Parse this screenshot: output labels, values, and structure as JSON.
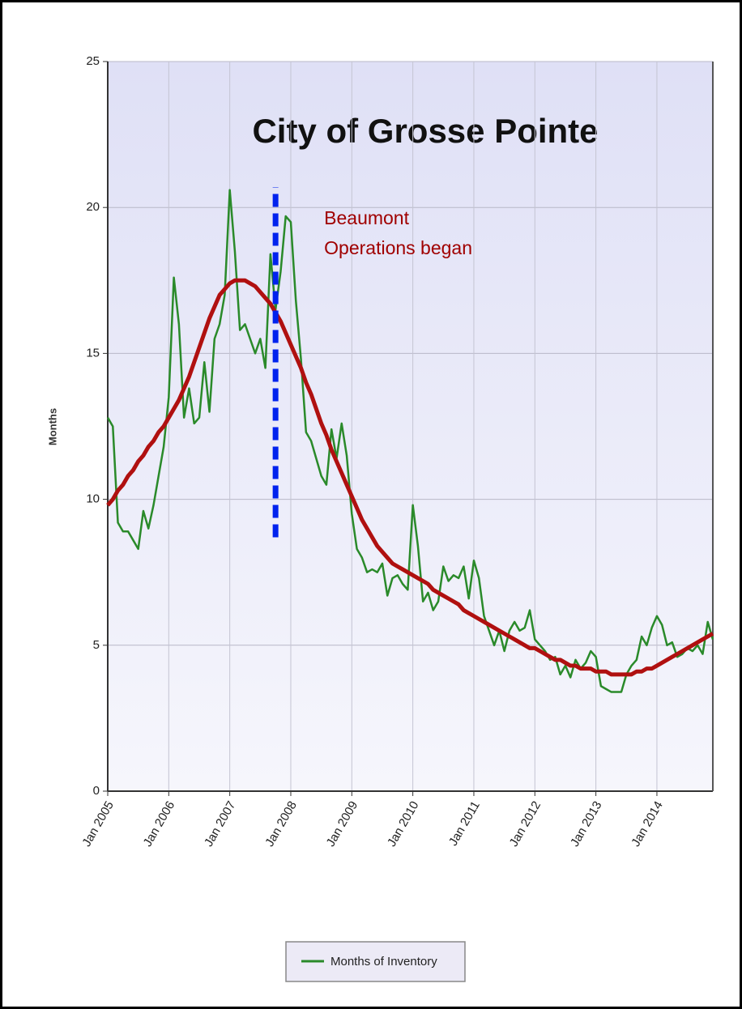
{
  "chart_data": {
    "type": "line",
    "title": "City of Grosse Pointe",
    "y_label": "Months",
    "x": [
      "Jan 2005",
      "Feb 2005",
      "Mar 2005",
      "Apr 2005",
      "May 2005",
      "Jun 2005",
      "Jul 2005",
      "Aug 2005",
      "Sep 2005",
      "Oct 2005",
      "Nov 2005",
      "Dec 2005",
      "Jan 2006",
      "Feb 2006",
      "Mar 2006",
      "Apr 2006",
      "May 2006",
      "Jun 2006",
      "Jul 2006",
      "Aug 2006",
      "Sep 2006",
      "Oct 2006",
      "Nov 2006",
      "Dec 2006",
      "Jan 2007",
      "Feb 2007",
      "Mar 2007",
      "Apr 2007",
      "May 2007",
      "Jun 2007",
      "Jul 2007",
      "Aug 2007",
      "Sep 2007",
      "Oct 2007",
      "Nov 2007",
      "Dec 2007",
      "Jan 2008",
      "Feb 2008",
      "Mar 2008",
      "Apr 2008",
      "May 2008",
      "Jun 2008",
      "Jul 2008",
      "Aug 2008",
      "Sep 2008",
      "Oct 2008",
      "Nov 2008",
      "Dec 2008",
      "Jan 2009",
      "Feb 2009",
      "Mar 2009",
      "Apr 2009",
      "May 2009",
      "Jun 2009",
      "Jul 2009",
      "Aug 2009",
      "Sep 2009",
      "Oct 2009",
      "Nov 2009",
      "Dec 2009",
      "Jan 2010",
      "Feb 2010",
      "Mar 2010",
      "Apr 2010",
      "May 2010",
      "Jun 2010",
      "Jul 2010",
      "Aug 2010",
      "Sep 2010",
      "Oct 2010",
      "Nov 2010",
      "Dec 2010",
      "Jan 2011",
      "Feb 2011",
      "Mar 2011",
      "Apr 2011",
      "May 2011",
      "Jun 2011",
      "Jul 2011",
      "Aug 2011",
      "Sep 2011",
      "Oct 2011",
      "Nov 2011",
      "Dec 2011",
      "Jan 2012",
      "Feb 2012",
      "Mar 2012",
      "Apr 2012",
      "May 2012",
      "Jun 2012",
      "Jul 2012",
      "Aug 2012",
      "Sep 2012",
      "Oct 2012",
      "Nov 2012",
      "Dec 2012",
      "Jan 2013",
      "Feb 2013",
      "Mar 2013",
      "Apr 2013",
      "May 2013",
      "Jun 2013",
      "Jul 2013",
      "Aug 2013",
      "Sep 2013",
      "Oct 2013",
      "Nov 2013",
      "Dec 2013",
      "Jan 2014",
      "Feb 2014",
      "Mar 2014",
      "Apr 2014",
      "May 2014",
      "Jun 2014",
      "Jul 2014",
      "Aug 2014",
      "Sep 2014",
      "Oct 2014",
      "Nov 2014",
      "Dec 2014"
    ],
    "series": [
      {
        "name": "Months of Inventory",
        "color": "#2a8a2a",
        "values": [
          12.8,
          12.5,
          9.2,
          8.9,
          8.9,
          8.6,
          8.3,
          9.6,
          9.0,
          9.8,
          10.8,
          11.8,
          13.5,
          17.6,
          16.0,
          12.8,
          13.8,
          12.6,
          12.8,
          14.7,
          13.0,
          15.5,
          16.0,
          17.0,
          20.6,
          18.5,
          15.8,
          16.0,
          15.5,
          15.0,
          15.5,
          14.5,
          18.4,
          16.5,
          17.8,
          19.7,
          19.5,
          16.8,
          14.8,
          12.3,
          12.0,
          11.4,
          10.8,
          10.5,
          12.4,
          11.4,
          12.6,
          11.5,
          9.5,
          8.3,
          8.0,
          7.5,
          7.6,
          7.5,
          7.8,
          6.7,
          7.3,
          7.4,
          7.1,
          6.9,
          9.8,
          8.4,
          6.5,
          6.8,
          6.2,
          6.5,
          7.7,
          7.2,
          7.4,
          7.3,
          7.7,
          6.6,
          7.9,
          7.3,
          6.0,
          5.5,
          5.0,
          5.5,
          4.8,
          5.5,
          5.8,
          5.5,
          5.6,
          6.2,
          5.2,
          5.0,
          4.8,
          4.5,
          4.6,
          4.0,
          4.3,
          3.9,
          4.5,
          4.2,
          4.4,
          4.8,
          4.6,
          3.6,
          3.5,
          3.4,
          3.4,
          3.4,
          4.0,
          4.3,
          4.5,
          5.3,
          5.0,
          5.6,
          6.0,
          5.7,
          5.0,
          5.1,
          4.6,
          4.7,
          4.9,
          4.8,
          5.0,
          4.7,
          5.8,
          5.2
        ]
      },
      {
        "color": "#b01010",
        "values": [
          9.8,
          10.0,
          10.3,
          10.5,
          10.8,
          11.0,
          11.3,
          11.5,
          11.8,
          12.0,
          12.3,
          12.5,
          12.8,
          13.1,
          13.4,
          13.8,
          14.2,
          14.7,
          15.2,
          15.7,
          16.2,
          16.6,
          17.0,
          17.2,
          17.4,
          17.5,
          17.5,
          17.5,
          17.4,
          17.3,
          17.1,
          16.9,
          16.7,
          16.4,
          16.1,
          15.7,
          15.3,
          14.9,
          14.5,
          14.0,
          13.6,
          13.1,
          12.6,
          12.2,
          11.7,
          11.3,
          10.9,
          10.5,
          10.1,
          9.7,
          9.3,
          9.0,
          8.7,
          8.4,
          8.2,
          8.0,
          7.8,
          7.7,
          7.6,
          7.5,
          7.4,
          7.3,
          7.2,
          7.1,
          6.9,
          6.8,
          6.7,
          6.6,
          6.5,
          6.4,
          6.2,
          6.1,
          6.0,
          5.9,
          5.8,
          5.7,
          5.6,
          5.5,
          5.4,
          5.3,
          5.2,
          5.1,
          5.0,
          4.9,
          4.9,
          4.8,
          4.7,
          4.6,
          4.5,
          4.5,
          4.4,
          4.3,
          4.3,
          4.2,
          4.2,
          4.2,
          4.1,
          4.1,
          4.1,
          4.0,
          4.0,
          4.0,
          4.0,
          4.0,
          4.1,
          4.1,
          4.2,
          4.2,
          4.3,
          4.4,
          4.5,
          4.6,
          4.7,
          4.8,
          4.9,
          5.0,
          5.1,
          5.2,
          5.3,
          5.4
        ]
      }
    ],
    "xlim": [
      "Jan 2005",
      "Dec 2014"
    ],
    "xticks": [
      "Jan 2005",
      "Jan 2006",
      "Jan 2007",
      "Jan 2008",
      "Jan 2009",
      "Jan 2010",
      "Jan 2011",
      "Jan 2012",
      "Jan 2013",
      "Jan 2014"
    ],
    "ylim": [
      0,
      25
    ],
    "yticks": [
      0,
      5,
      10,
      15,
      20,
      25
    ],
    "grid": true,
    "legend": "bottom",
    "annotation": {
      "x": "Oct 2007",
      "y_span": [
        8.7,
        20.7
      ],
      "color": "#0022ee",
      "text": [
        "Beaumont",
        "Operations began"
      ],
      "text_color": "#a00000"
    }
  }
}
